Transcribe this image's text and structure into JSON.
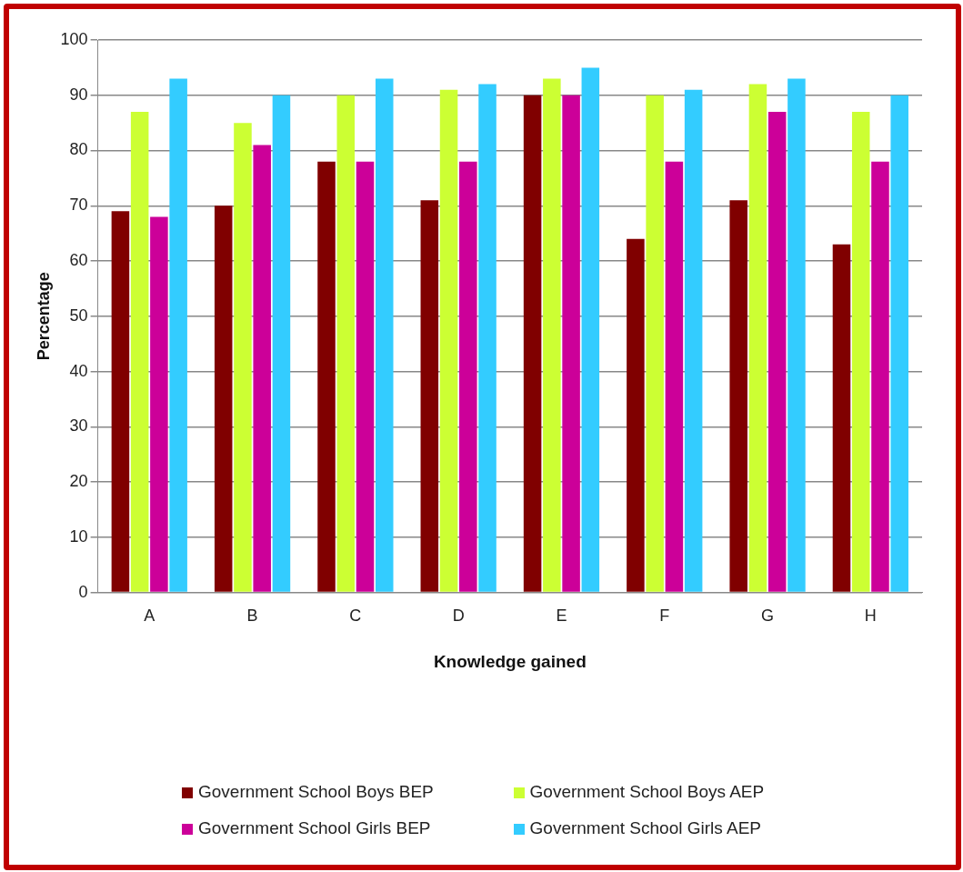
{
  "chart_data": {
    "type": "bar",
    "xlabel": "Knowledge gained",
    "ylabel": "Percentage",
    "categories": [
      "A",
      "B",
      "C",
      "D",
      "E",
      "F",
      "G",
      "H"
    ],
    "series": [
      {
        "name": "Government School Boys BEP",
        "color": "#800000",
        "values": [
          69,
          70,
          78,
          71,
          90,
          64,
          71,
          63
        ]
      },
      {
        "name": "Government School Boys AEP",
        "color": "#ccff33",
        "values": [
          87,
          85,
          90,
          91,
          93,
          90,
          92,
          87
        ]
      },
      {
        "name": "Government School Girls BEP",
        "color": "#cc0099",
        "values": [
          68,
          81,
          78,
          78,
          90,
          78,
          87,
          78
        ]
      },
      {
        "name": "Government School Girls AEP",
        "color": "#33ccff",
        "values": [
          93,
          90,
          93,
          92,
          95,
          91,
          93,
          90
        ]
      }
    ],
    "ylim": [
      0,
      100
    ],
    "yticks": [
      0,
      10,
      20,
      30,
      40,
      50,
      60,
      70,
      80,
      90,
      100
    ],
    "grid": "y",
    "legend": "bottom"
  }
}
